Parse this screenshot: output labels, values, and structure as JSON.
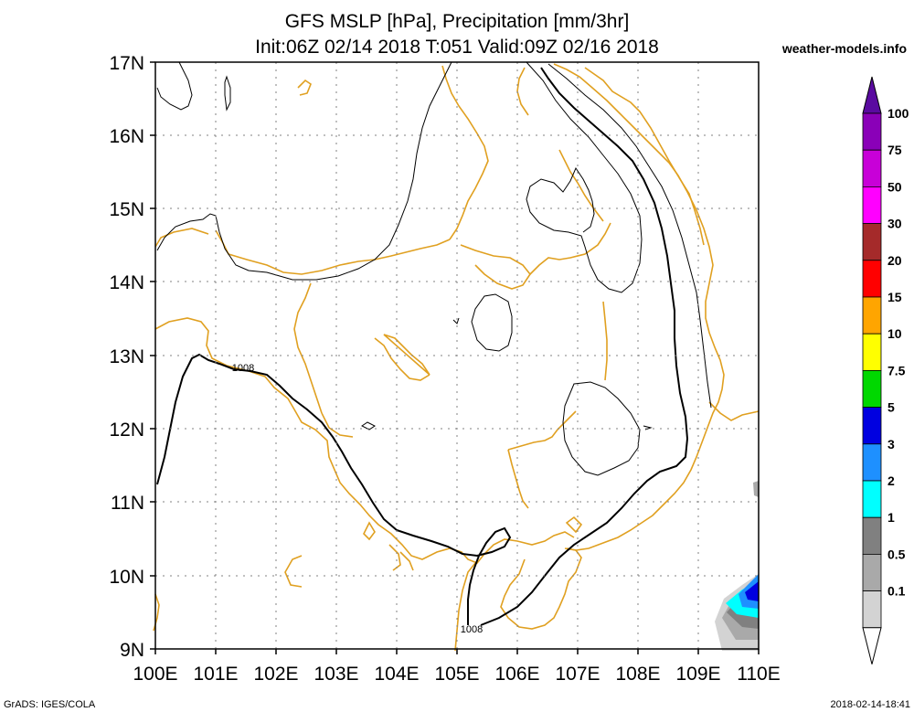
{
  "title_line1": "GFS MSLP [hPa], Precipitation [mm/3hr]",
  "title_line2": "Init:06Z 02/14 2018 T:051 Valid:09Z 02/16 2018",
  "brand": "weather-models.info",
  "footer_left": "GrADS: IGES/COLA",
  "footer_right": "2018-02-14-18:41",
  "lat_labels": [
    "17N",
    "16N",
    "15N",
    "14N",
    "13N",
    "12N",
    "11N",
    "10N",
    "9N"
  ],
  "lon_labels": [
    "100E",
    "101E",
    "102E",
    "103E",
    "104E",
    "105E",
    "106E",
    "107E",
    "108E",
    "109E",
    "110E"
  ],
  "contour_labels": [
    "1008",
    "1008"
  ],
  "colorbar": {
    "labels": [
      "100",
      "75",
      "50",
      "30",
      "20",
      "15",
      "10",
      "7.5",
      "5",
      "3",
      "2",
      "1",
      "0.5",
      "0.1"
    ],
    "colors": [
      "#5a0aa0",
      "#8a00b8",
      "#c800d8",
      "#ff00ff",
      "#a52a2a",
      "#ff0000",
      "#ffa500",
      "#ffff00",
      "#00d800",
      "#0000e0",
      "#1e90ff",
      "#00ffff",
      "#808080",
      "#a9a9a9",
      "#d3d3d3",
      "#ffffff"
    ]
  },
  "colors": {
    "coast": "#e0a020",
    "contour": "#000000",
    "grid": "#808080"
  }
}
